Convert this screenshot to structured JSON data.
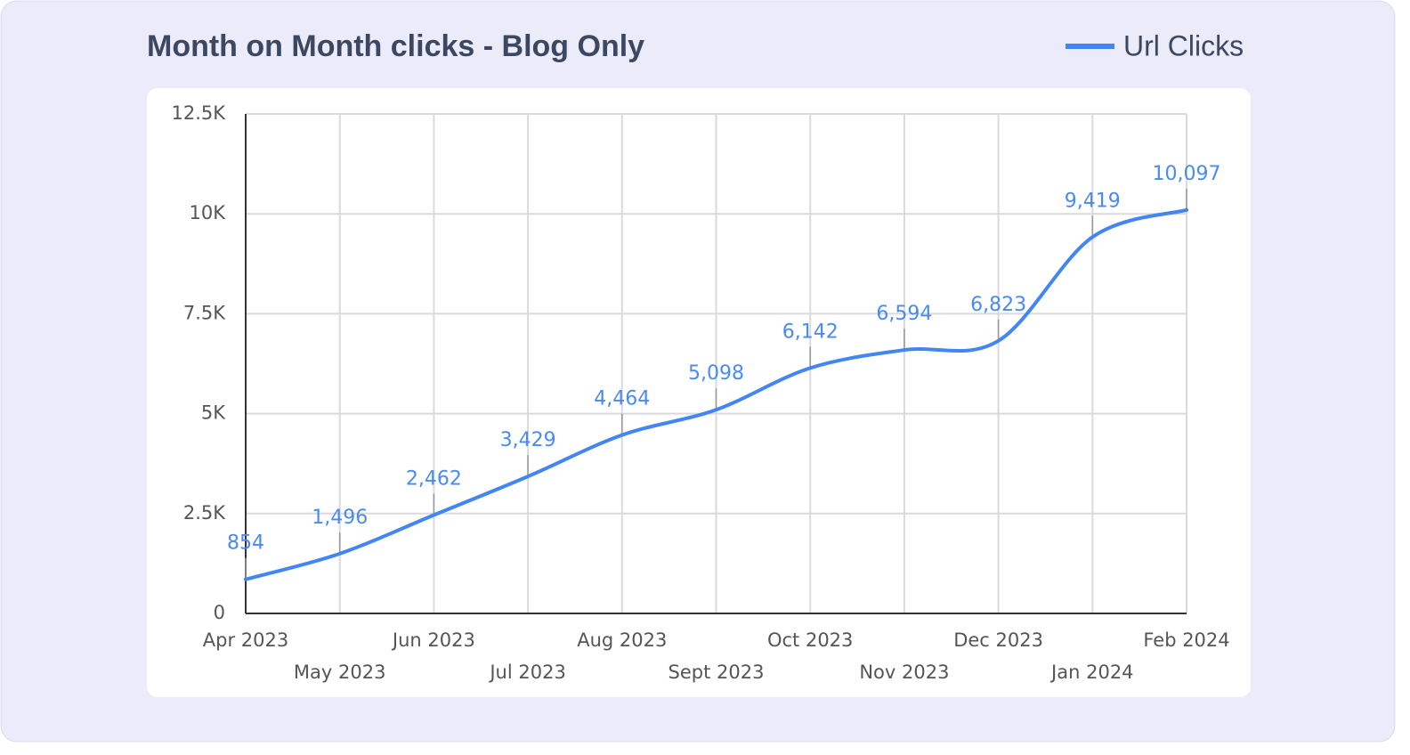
{
  "chart_data": {
    "type": "line",
    "title": "Month on Month clicks - Blog Only",
    "categories": [
      "Apr 2023",
      "May 2023",
      "Jun 2023",
      "Jul 2023",
      "Aug 2023",
      "Sept 2023",
      "Oct 2023",
      "Nov 2023",
      "Dec 2023",
      "Jan 2024",
      "Feb 2024"
    ],
    "series": [
      {
        "name": "Url Clicks",
        "color": "#4285f4",
        "values": [
          854,
          1496,
          2462,
          3429,
          4464,
          5098,
          6142,
          6594,
          6823,
          9419,
          10097
        ],
        "value_labels": [
          "854",
          "1,496",
          "2,462",
          "3,429",
          "4,464",
          "5,098",
          "6,142",
          "6,594",
          "6,823",
          "9,419",
          "10,097"
        ]
      }
    ],
    "ylim": [
      0,
      12500
    ],
    "yticks": [
      0,
      {
        "value": 2500,
        "label": "2.5K"
      },
      {
        "value": 5000,
        "label": "5K"
      },
      {
        "value": 7500,
        "label": "7.5K"
      },
      {
        "value": 10000,
        "label": "10K"
      },
      {
        "value": 12500,
        "label": "12.5K"
      }
    ],
    "grid": true,
    "legend": "top-right"
  }
}
